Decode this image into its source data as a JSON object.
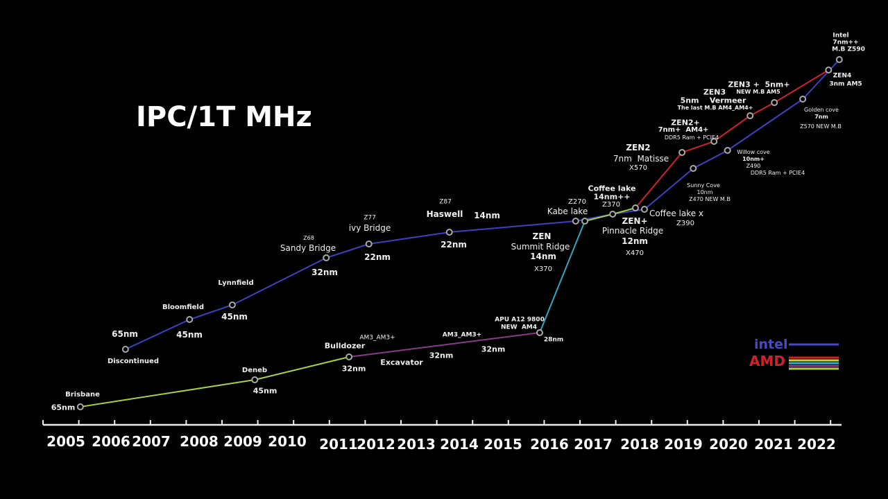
{
  "chart_data": {
    "type": "line",
    "title": "IPC/1T MHz",
    "xlabel": "",
    "ylabel": "",
    "x_tick_labels": [
      "2005",
      "2006",
      "2007",
      "2008",
      "2009",
      "2010",
      "2011",
      "2012",
      "2013",
      "2014",
      "2015",
      "2016",
      "2017",
      "2018",
      "2019",
      "2020",
      "2021",
      "2022"
    ],
    "y_scale_printed": false,
    "grid": false,
    "legend_placement": "bottom-right",
    "legend": [
      {
        "name": "intel",
        "colors": [
          "#4a4ac8"
        ]
      },
      {
        "name": "AMD",
        "colors": [
          "#d0202c",
          "#c8d040",
          "#30b0c8",
          "#8a3a8a",
          "#a8d040"
        ]
      }
    ],
    "series": [
      {
        "name": "intel",
        "color": "#4040c0",
        "points": [
          [
            2006.36,
            19.2
          ],
          [
            2007.8,
            27.8
          ],
          [
            2008.76,
            32.0
          ],
          [
            2010.76,
            45.6
          ],
          [
            2011.81,
            49.6
          ],
          [
            2013.77,
            53.0
          ],
          [
            2016.6,
            56.2
          ],
          [
            2017.42,
            58.2
          ],
          [
            2018.11,
            59.6
          ],
          [
            2019.22,
            71.4
          ],
          [
            2019.98,
            76.6
          ],
          [
            2021.68,
            91.4
          ],
          [
            2022.53,
            102.8
          ]
        ]
      },
      {
        "name": "AMD",
        "segments": [
          {
            "color": "#a8d040",
            "points": [
              [
                2005.32,
                2.6
              ],
              [
                2009.27,
                10.4
              ],
              [
                2011.28,
                17.0
              ]
            ]
          },
          {
            "color": "#8a3a8a",
            "points": [
              [
                2011.28,
                17.0
              ],
              [
                2015.79,
                24.0
              ]
            ]
          },
          {
            "color": "#30a8c0",
            "points": [
              [
                2015.79,
                24.0
              ],
              [
                2016.81,
                56.2
              ]
            ]
          },
          {
            "color": "#a8d040",
            "points": [
              [
                2016.81,
                56.2
              ],
              [
                2017.42,
                58.2
              ],
              [
                2017.91,
                60.0
              ]
            ]
          },
          {
            "color": "#d02030",
            "points": [
              [
                2017.91,
                60.0
              ],
              [
                2018.97,
                76.0
              ],
              [
                2019.68,
                79.2
              ],
              [
                2020.48,
                86.6
              ],
              [
                2021.02,
                90.4
              ],
              [
                2022.28,
                99.8
              ]
            ]
          }
        ]
      }
    ],
    "annotations": [
      "65nm",
      "Discontinued",
      "Bloomfield",
      "45nm",
      "Lynnfield",
      "45nm",
      "Z68",
      "Sandy Bridge",
      "32nm",
      "Z77",
      "ivy Bridge",
      "22nm",
      "Z87",
      "Haswell",
      "14nm",
      "22nm",
      "Z270",
      "Kabe lake",
      "Coffee lake",
      "14nm++",
      "Z370",
      "ZEN",
      "Summit Ridge",
      "14nm",
      "X370",
      "ZEN+",
      "Pinnacle Ridge",
      "12nm",
      "X470",
      "Coffee lake x",
      "Z390",
      "ZEN2",
      "7nm  Matisse",
      "X570",
      "Sunny Cove",
      "10nm",
      "Z470 NEW M.B",
      "ZEN2+",
      "7nm+  AM4+",
      "DDR5 Ram + PCIE4",
      "Willow cove",
      "10nm+",
      "Z490",
      "DDR5 Ram + PCIE4",
      "ZEN3",
      "5nm    Vermeer",
      "The last M.B AM4_AM4+",
      "ZEN3 +  5nm+",
      "NEW M.B AM5",
      "Golden cove",
      "7nm",
      "Z570 NEW M.B",
      "Intel",
      "7nm++",
      "M.B Z590",
      "ZEN4",
      "3nm AM5",
      "Brisbane",
      "65nm",
      "Deneb",
      "45nm",
      "Bulldozer",
      "32nm",
      "AM3_AM3+",
      "Excavator",
      "32nm",
      "AM3_AM3+",
      "32nm",
      "APU A12 9800",
      "NEW  AM4",
      "28nm"
    ]
  }
}
